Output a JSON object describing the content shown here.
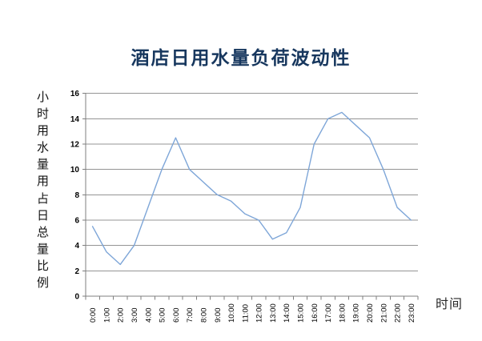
{
  "chart_data": {
    "type": "line",
    "title": "酒店日用水量负荷波动性",
    "ylabel": "小时用水量用占日总量比例",
    "xlabel": "时间",
    "categories": [
      "0:00",
      "1:00",
      "2:00",
      "3:00",
      "4:00",
      "5:00",
      "6:00",
      "7:00",
      "8:00",
      "9:00",
      "10:00",
      "11:00",
      "12:00",
      "13:00",
      "14:00",
      "15:00",
      "16:00",
      "17:00",
      "18:00",
      "19:00",
      "20:00",
      "21:00",
      "22:00",
      "23:00"
    ],
    "values": [
      5.5,
      3.5,
      2.5,
      4,
      7,
      10,
      12.5,
      10,
      9,
      8,
      7.5,
      6.5,
      6,
      4.5,
      5,
      7,
      12,
      14,
      14.5,
      13.5,
      12.5,
      10,
      7,
      6
    ],
    "ylim": [
      0,
      16
    ],
    "ytick_step": 2,
    "yticks": [
      "0",
      "2",
      "4",
      "6",
      "8",
      "10",
      "12",
      "14",
      "16"
    ],
    "grid": "horizontal",
    "legend": "none",
    "line_color": "#7EA6D8",
    "grid_color": "#949494",
    "axis_color": "#7F7F7F",
    "title_color": "#17375E"
  }
}
